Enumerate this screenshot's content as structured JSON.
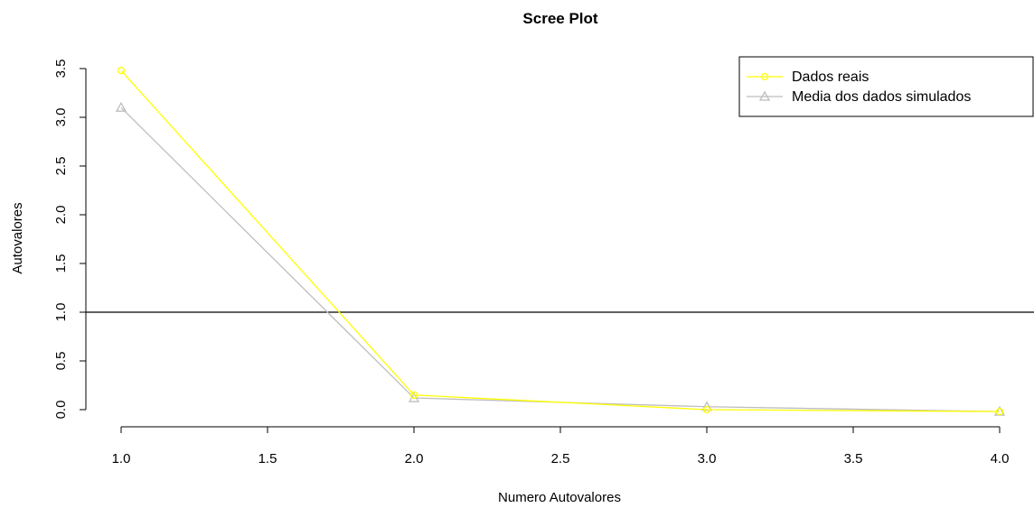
{
  "chart_data": {
    "type": "line",
    "title": "Scree Plot",
    "xlabel": "Numero Autovalores",
    "ylabel": "Autovalores",
    "xlim": [
      1.0,
      4.0
    ],
    "ylim": [
      0.0,
      3.5
    ],
    "x_ticks": [
      "1.0",
      "1.5",
      "2.0",
      "2.5",
      "3.0",
      "3.5",
      "4.0"
    ],
    "y_ticks": [
      "0.0",
      "0.5",
      "1.0",
      "1.5",
      "2.0",
      "2.5",
      "3.0",
      "3.5"
    ],
    "x": [
      1,
      2,
      3,
      4
    ],
    "series": [
      {
        "name": "Dados reais",
        "values": [
          3.48,
          0.15,
          0.0,
          -0.02
        ],
        "color": "#ffff00",
        "marker": "circle"
      },
      {
        "name": "Media dos dados simulados",
        "values": [
          3.1,
          0.12,
          0.03,
          -0.02
        ],
        "color": "#bebebe",
        "marker": "triangle"
      }
    ],
    "reference_line": {
      "y": 1.0,
      "color": "#000000"
    },
    "legend_position": "top-right",
    "grid": false
  }
}
